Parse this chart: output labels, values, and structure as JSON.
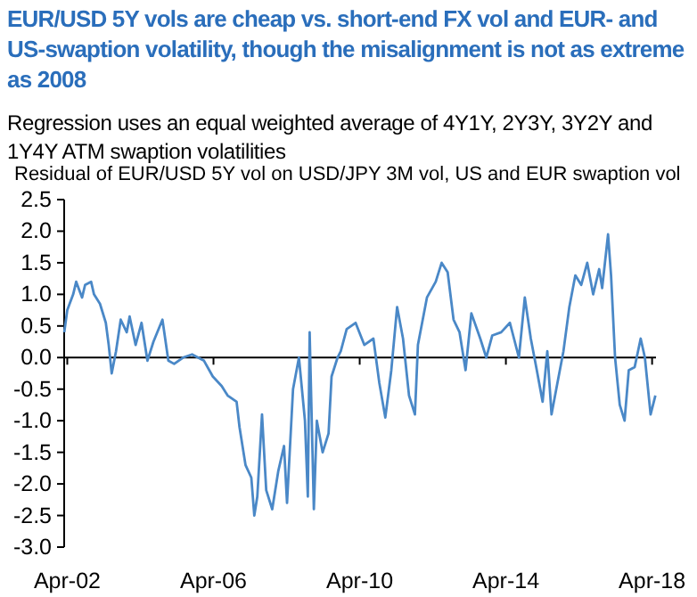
{
  "chart_data": {
    "type": "line",
    "title": "EUR/USD 5Y vols are cheap vs. short-end FX vol and EUR- and US-swaption volatility, though the misalignment is not as extreme as 2008",
    "subtitle": "Regression uses an equal weighted average of 4Y1Y, 2Y3Y, 3Y2Y and 1Y4Y ATM swaption volatilities",
    "ylabel": "Residual of EUR/USD 5Y vol on USD/JPY 3M vol, US and EUR swaption vol",
    "x": [
      "2002-03-02",
      "2002-04-01",
      "2002-05-30",
      "2002-06-29",
      "2002-08-27",
      "2002-09-26",
      "2002-11-25",
      "2002-12-24",
      "2003-02-22",
      "2003-04-21",
      "2003-05-20",
      "2003-06-19",
      "2003-08-01",
      "2003-09-17",
      "2003-11-16",
      "2003-12-15",
      "2004-02-13",
      "2004-04-12",
      "2004-06-10",
      "2004-08-09",
      "2004-11-07",
      "2005-01-05",
      "2005-03-04",
      "2005-06-01",
      "2005-08-30",
      "2005-12-27",
      "2006-03-25",
      "2006-06-22",
      "2006-08-20",
      "2006-11-18",
      "2006-12-17",
      "2007-02-15",
      "2007-04-14",
      "2007-05-14",
      "2007-06-13",
      "2007-07-30",
      "2007-09-10",
      "2007-11-09",
      "2008-01-08",
      "2008-03-06",
      "2008-04-05",
      "2008-06-04",
      "2008-08-02",
      "2008-10-01",
      "2008-10-30",
      "2008-11-17",
      "2008-12-29",
      "2009-01-28",
      "2009-03-27",
      "2009-05-25",
      "2009-06-24",
      "2009-08-23",
      "2009-09-24",
      "2009-11-22",
      "2010-02-19",
      "2010-05-17",
      "2010-08-16",
      "2010-10-14",
      "2010-12-13",
      "2011-02-11",
      "2011-04-10",
      "2011-06-08",
      "2011-08-07",
      "2011-10-05",
      "2011-11-04",
      "2012-02-02",
      "2012-04-30",
      "2012-06-28",
      "2012-08-27",
      "2012-10-25",
      "2012-12-24",
      "2013-02-22",
      "2013-04-21",
      "2013-07-19",
      "2013-09-17",
      "2013-11-16",
      "2014-02-13",
      "2014-05-11",
      "2014-08-09",
      "2014-10-07",
      "2014-12-06",
      "2015-02-04",
      "2015-04-03",
      "2015-05-20",
      "2015-07-01",
      "2015-08-29",
      "2015-10-28",
      "2015-12-26",
      "2016-02-24",
      "2016-04-23",
      "2016-06-22",
      "2016-08-20",
      "2016-10-19",
      "2016-11-18",
      "2017-01-16",
      "2017-02-15",
      "2017-03-27",
      "2017-05-13",
      "2017-06-30",
      "2017-08-11",
      "2017-10-09",
      "2017-12-08",
      "2018-01-19",
      "2018-03-17",
      "2018-05-04"
    ],
    "series": [
      {
        "color": "#4a88c7",
        "values": [
          0.4,
          0.75,
          1.0,
          1.2,
          0.95,
          1.15,
          1.2,
          1.0,
          0.85,
          0.55,
          0.2,
          -0.25,
          0.1,
          0.6,
          0.4,
          0.65,
          0.2,
          0.55,
          -0.05,
          0.25,
          0.6,
          -0.05,
          -0.1,
          0.0,
          0.05,
          -0.05,
          -0.3,
          -0.45,
          -0.6,
          -0.7,
          -1.1,
          -1.7,
          -1.9,
          -2.5,
          -2.2,
          -0.9,
          -2.1,
          -2.4,
          -1.8,
          -1.4,
          -2.3,
          -0.5,
          0.0,
          -1.0,
          -2.2,
          0.4,
          -2.4,
          -1.0,
          -1.5,
          -1.2,
          -0.3,
          0.0,
          0.1,
          0.45,
          0.55,
          0.2,
          0.3,
          -0.4,
          -0.95,
          -0.2,
          0.8,
          0.3,
          -0.6,
          -0.9,
          0.2,
          0.95,
          1.2,
          1.5,
          1.35,
          0.6,
          0.4,
          -0.2,
          0.7,
          0.3,
          0.0,
          0.35,
          0.4,
          0.55,
          0.0,
          0.95,
          0.3,
          -0.2,
          -0.7,
          0.1,
          -0.9,
          -0.4,
          0.1,
          0.8,
          1.3,
          1.15,
          1.5,
          1.0,
          1.4,
          1.1,
          1.95,
          1.3,
          0.0,
          -0.75,
          -1.0,
          -0.2,
          -0.15,
          0.3,
          0.0,
          -0.9,
          -0.6
        ]
      }
    ],
    "xlim": [
      "2002-03-01",
      "2018-05-10"
    ],
    "xticks": [
      {
        "value": "2002-04-01",
        "label": "Apr-02"
      },
      {
        "value": "2006-04-01",
        "label": "Apr-06"
      },
      {
        "value": "2010-04-01",
        "label": "Apr-10"
      },
      {
        "value": "2014-04-01",
        "label": "Apr-14"
      },
      {
        "value": "2018-04-01",
        "label": "Apr-18"
      }
    ],
    "ylim": [
      -3.0,
      2.5
    ],
    "yticks": [
      {
        "value": -3,
        "label": "-3.0"
      },
      {
        "value": -2.5,
        "label": "-2.5"
      },
      {
        "value": -2,
        "label": "-2.0"
      },
      {
        "value": -1.5,
        "label": "-1.5"
      },
      {
        "value": -1,
        "label": "-1.0"
      },
      {
        "value": -0.5,
        "label": "-0.5"
      },
      {
        "value": 0,
        "label": "0.0"
      },
      {
        "value": 0.5,
        "label": "0.5"
      },
      {
        "value": 1,
        "label": "1.0"
      },
      {
        "value": 1.5,
        "label": "1.5"
      },
      {
        "value": 2,
        "label": "2.0"
      },
      {
        "value": 2.5,
        "label": "2.5"
      }
    ],
    "ref_lines": [
      {
        "axis": "y",
        "value": 0,
        "color": "#000000"
      }
    ],
    "line_style": "solid",
    "marker": "none"
  }
}
